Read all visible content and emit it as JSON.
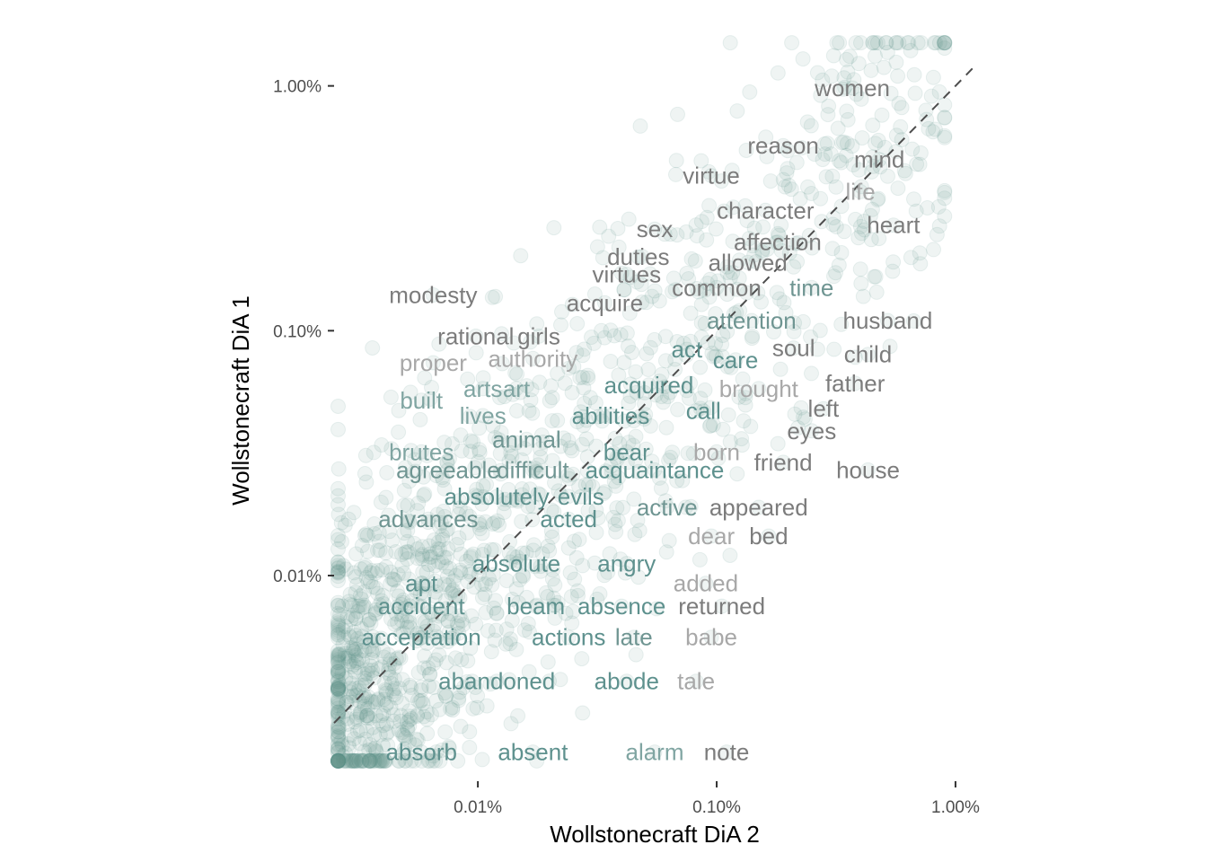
{
  "chart_data": {
    "type": "scatter",
    "title": "",
    "xlabel": "Wollstonecraft DiA 2",
    "ylabel": "Wollstonecraft DiA 1",
    "x_scale": "log10",
    "y_scale": "log10",
    "xlim": [
      0.0025,
      1.2
    ],
    "ylim": [
      0.0016,
      1.6
    ],
    "x_ticks": [
      {
        "value": 0.01,
        "label": "0.01%"
      },
      {
        "value": 0.1,
        "label": "0.10%"
      },
      {
        "value": 1,
        "label": "1.00%"
      }
    ],
    "y_ticks": [
      {
        "value": 0.01,
        "label": "0.01%"
      },
      {
        "value": 0.1,
        "label": "0.10%"
      },
      {
        "value": 1,
        "label": "1.00%"
      }
    ],
    "reference_line": "y = x (dashed)",
    "grid": false,
    "legend": "none",
    "colors": {
      "low": "#5e918e",
      "high": "#808080",
      "point": "#5e918e",
      "reference_line": "#4d4d4d"
    },
    "labels": [
      {
        "text": "women",
        "x": 0.37,
        "y": 0.98,
        "color": "#7c7c7c"
      },
      {
        "text": "reason",
        "x": 0.19,
        "y": 0.57,
        "color": "#7c7c7c"
      },
      {
        "text": "mind",
        "x": 0.48,
        "y": 0.5,
        "color": "#7c7c7c"
      },
      {
        "text": "virtue",
        "x": 0.095,
        "y": 0.43,
        "color": "#7c7c7c"
      },
      {
        "text": "life",
        "x": 0.4,
        "y": 0.37,
        "color": "#a8a8a8"
      },
      {
        "text": "character",
        "x": 0.16,
        "y": 0.31,
        "color": "#7c7c7c"
      },
      {
        "text": "heart",
        "x": 0.55,
        "y": 0.27,
        "color": "#7c7c7c"
      },
      {
        "text": "sex",
        "x": 0.055,
        "y": 0.26,
        "color": "#7c7c7c"
      },
      {
        "text": "affection",
        "x": 0.18,
        "y": 0.23,
        "color": "#7c7c7c"
      },
      {
        "text": "duties",
        "x": 0.047,
        "y": 0.2,
        "color": "#7c7c7c"
      },
      {
        "text": "allowed",
        "x": 0.135,
        "y": 0.19,
        "color": "#7c7c7c"
      },
      {
        "text": "virtues",
        "x": 0.042,
        "y": 0.17,
        "color": "#7c7c7c"
      },
      {
        "text": "time",
        "x": 0.25,
        "y": 0.15,
        "color": "#6f9592"
      },
      {
        "text": "common",
        "x": 0.1,
        "y": 0.15,
        "color": "#7c7c7c"
      },
      {
        "text": "modesty",
        "x": 0.0065,
        "y": 0.14,
        "color": "#7c7c7c"
      },
      {
        "text": "acquire",
        "x": 0.034,
        "y": 0.13,
        "color": "#7c7c7c"
      },
      {
        "text": "attention",
        "x": 0.14,
        "y": 0.11,
        "color": "#6f9592"
      },
      {
        "text": "husband",
        "x": 0.52,
        "y": 0.11,
        "color": "#7c7c7c"
      },
      {
        "text": "rational",
        "x": 0.0098,
        "y": 0.095,
        "color": "#7c7c7c"
      },
      {
        "text": "girls",
        "x": 0.018,
        "y": 0.095,
        "color": "#7c7c7c"
      },
      {
        "text": "soul",
        "x": 0.21,
        "y": 0.085,
        "color": "#7c7c7c"
      },
      {
        "text": "act",
        "x": 0.075,
        "y": 0.084,
        "color": "#5e918e"
      },
      {
        "text": "child",
        "x": 0.43,
        "y": 0.08,
        "color": "#7c7c7c"
      },
      {
        "text": "care",
        "x": 0.12,
        "y": 0.076,
        "color": "#5e918e"
      },
      {
        "text": "proper",
        "x": 0.0065,
        "y": 0.074,
        "color": "#a8a8a8"
      },
      {
        "text": "authority",
        "x": 0.017,
        "y": 0.077,
        "color": "#a8a8a8"
      },
      {
        "text": "acquired",
        "x": 0.052,
        "y": 0.06,
        "color": "#5e918e"
      },
      {
        "text": "father",
        "x": 0.38,
        "y": 0.061,
        "color": "#7c7c7c"
      },
      {
        "text": "brought",
        "x": 0.15,
        "y": 0.058,
        "color": "#a8a8a8"
      },
      {
        "text": "arts",
        "x": 0.0105,
        "y": 0.058,
        "color": "#80a5a2"
      },
      {
        "text": "art",
        "x": 0.0145,
        "y": 0.058,
        "color": "#80a5a2"
      },
      {
        "text": "built",
        "x": 0.0058,
        "y": 0.052,
        "color": "#80a5a2"
      },
      {
        "text": "left",
        "x": 0.28,
        "y": 0.048,
        "color": "#7c7c7c"
      },
      {
        "text": "call",
        "x": 0.088,
        "y": 0.047,
        "color": "#5e918e"
      },
      {
        "text": "lives",
        "x": 0.0105,
        "y": 0.045,
        "color": "#80a5a2"
      },
      {
        "text": "abilities",
        "x": 0.036,
        "y": 0.045,
        "color": "#5e918e"
      },
      {
        "text": "eyes",
        "x": 0.25,
        "y": 0.039,
        "color": "#7c7c7c"
      },
      {
        "text": "animal",
        "x": 0.016,
        "y": 0.036,
        "color": "#6f9592"
      },
      {
        "text": "bear",
        "x": 0.042,
        "y": 0.032,
        "color": "#5e918e"
      },
      {
        "text": "born",
        "x": 0.1,
        "y": 0.032,
        "color": "#a8a8a8"
      },
      {
        "text": "brutes",
        "x": 0.0058,
        "y": 0.032,
        "color": "#80a5a2"
      },
      {
        "text": "friend",
        "x": 0.19,
        "y": 0.029,
        "color": "#7c7c7c"
      },
      {
        "text": "agreeable",
        "x": 0.0075,
        "y": 0.027,
        "color": "#6f9592"
      },
      {
        "text": "difficult",
        "x": 0.017,
        "y": 0.027,
        "color": "#6f9592"
      },
      {
        "text": "acquaintance",
        "x": 0.055,
        "y": 0.027,
        "color": "#5e918e"
      },
      {
        "text": "house",
        "x": 0.43,
        "y": 0.027,
        "color": "#7c7c7c"
      },
      {
        "text": "absolutely",
        "x": 0.012,
        "y": 0.021,
        "color": "#5e918e"
      },
      {
        "text": "evils",
        "x": 0.027,
        "y": 0.021,
        "color": "#5e918e"
      },
      {
        "text": "active",
        "x": 0.062,
        "y": 0.019,
        "color": "#6f9592"
      },
      {
        "text": "appeared",
        "x": 0.15,
        "y": 0.019,
        "color": "#7c7c7c"
      },
      {
        "text": "advances",
        "x": 0.0062,
        "y": 0.017,
        "color": "#6f9592"
      },
      {
        "text": "acted",
        "x": 0.024,
        "y": 0.017,
        "color": "#5e918e"
      },
      {
        "text": "dear",
        "x": 0.095,
        "y": 0.0145,
        "color": "#a8a8a8"
      },
      {
        "text": "bed",
        "x": 0.165,
        "y": 0.0145,
        "color": "#7c7c7c"
      },
      {
        "text": "absolute",
        "x": 0.0145,
        "y": 0.0112,
        "color": "#5e918e"
      },
      {
        "text": "angry",
        "x": 0.042,
        "y": 0.0112,
        "color": "#5e918e"
      },
      {
        "text": "added",
        "x": 0.09,
        "y": 0.0093,
        "color": "#a8a8a8"
      },
      {
        "text": "apt",
        "x": 0.0058,
        "y": 0.0093,
        "color": "#5e918e"
      },
      {
        "text": "accident",
        "x": 0.0058,
        "y": 0.0075,
        "color": "#5e918e"
      },
      {
        "text": "beam",
        "x": 0.0175,
        "y": 0.0075,
        "color": "#5e918e"
      },
      {
        "text": "absence",
        "x": 0.04,
        "y": 0.0075,
        "color": "#5e918e"
      },
      {
        "text": "returned",
        "x": 0.105,
        "y": 0.0075,
        "color": "#7c7c7c"
      },
      {
        "text": "acceptation",
        "x": 0.0058,
        "y": 0.0056,
        "color": "#5e918e"
      },
      {
        "text": "actions",
        "x": 0.024,
        "y": 0.0056,
        "color": "#5e918e"
      },
      {
        "text": "late",
        "x": 0.045,
        "y": 0.0056,
        "color": "#6f9592"
      },
      {
        "text": "babe",
        "x": 0.095,
        "y": 0.0056,
        "color": "#a8a8a8"
      },
      {
        "text": "abandoned",
        "x": 0.012,
        "y": 0.0037,
        "color": "#5e918e"
      },
      {
        "text": "abode",
        "x": 0.042,
        "y": 0.0037,
        "color": "#5e918e"
      },
      {
        "text": "tale",
        "x": 0.082,
        "y": 0.0037,
        "color": "#a8a8a8"
      },
      {
        "text": "absorb",
        "x": 0.0058,
        "y": 0.0019,
        "color": "#5e918e"
      },
      {
        "text": "absent",
        "x": 0.017,
        "y": 0.0019,
        "color": "#5e918e"
      },
      {
        "text": "alarm",
        "x": 0.055,
        "y": 0.0019,
        "color": "#80a5a2"
      },
      {
        "text": "note",
        "x": 0.11,
        "y": 0.0019,
        "color": "#7c7c7c"
      }
    ],
    "points_note": "dense cloud of semi-transparent points along and around the diagonal"
  }
}
